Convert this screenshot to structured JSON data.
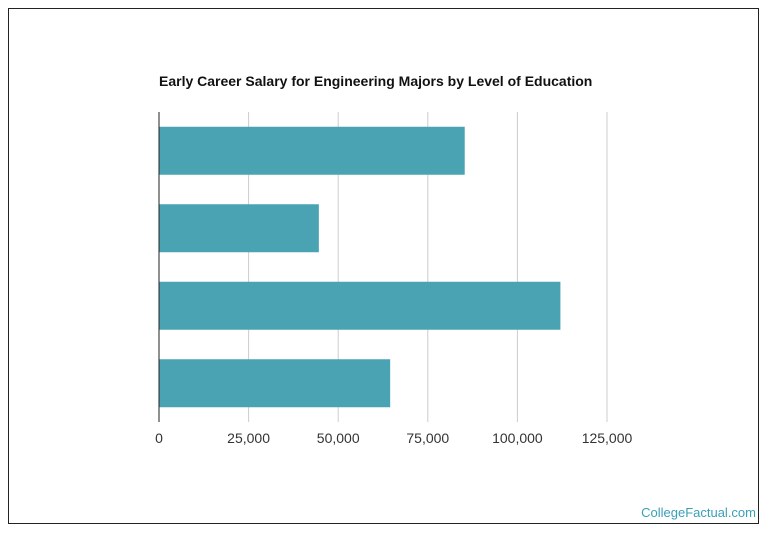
{
  "chart_data": {
    "type": "bar",
    "orientation": "horizontal",
    "title": "Early Career Salary for Engineering Majors by Level of Education",
    "categories": [
      "",
      "",
      "",
      ""
    ],
    "values": [
      85300,
      44600,
      112000,
      64500
    ],
    "xlim": [
      0,
      125000
    ],
    "xticks": [
      0,
      25000,
      50000,
      75000,
      100000,
      125000
    ],
    "xtick_labels": [
      "0",
      "25,000",
      "50,000",
      "75,000",
      "100,000",
      "125,000"
    ],
    "grid": true,
    "bar_color": "#4aa3b3",
    "grid_color": "#cccccc"
  },
  "watermark": "CollegeFactual.com"
}
